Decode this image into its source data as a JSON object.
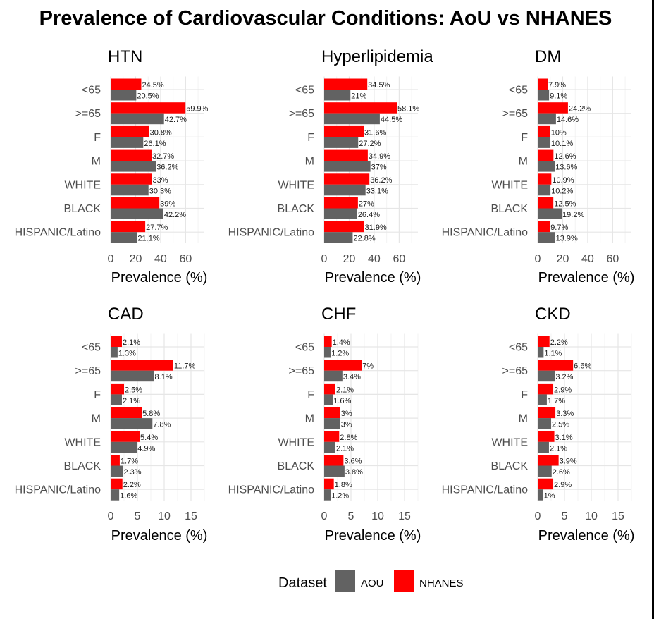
{
  "chart_data": {
    "type": "bar",
    "title": "Prevalence of Cardiovascular Conditions: AoU vs NHANES",
    "categories": [
      "<65",
      ">=65",
      "F",
      "M",
      "WHITE",
      "BLACK",
      "HISPANIC/Latino"
    ],
    "xlabel": "Prevalence (%)",
    "grid": true,
    "legend": {
      "title": "Dataset",
      "position": "bottom",
      "entries": [
        {
          "name": "AOU",
          "color": "#626262"
        },
        {
          "name": "NHANES",
          "color": "#ff0000"
        }
      ]
    },
    "panels": [
      {
        "name": "HTN",
        "xlim": [
          0,
          75
        ],
        "ticks": [
          0,
          20,
          40,
          60
        ],
        "series": [
          {
            "name": "NHANES",
            "values": [
              24.5,
              59.9,
              30.8,
              32.7,
              33,
              39,
              27.7
            ],
            "labels": [
              "24.5%",
              "59.9%",
              "30.8%",
              "32.7%",
              "33%",
              "39%",
              "27.7%"
            ]
          },
          {
            "name": "AOU",
            "values": [
              20.5,
              42.7,
              26.1,
              36.2,
              30.3,
              42.2,
              21.1
            ],
            "labels": [
              "20.5%",
              "42.7%",
              "26.1%",
              "36.2%",
              "30.3%",
              "42.2%",
              "21.1%"
            ]
          }
        ]
      },
      {
        "name": "Hyperlipidemia",
        "xlim": [
          0,
          75
        ],
        "ticks": [
          0,
          20,
          40,
          60
        ],
        "series": [
          {
            "name": "NHANES",
            "values": [
              34.5,
              58.1,
              31.6,
              34.9,
              36.2,
              27,
              31.9
            ],
            "labels": [
              "34.5%",
              "58.1%",
              "31.6%",
              "34.9%",
              "36.2%",
              "27%",
              "31.9%"
            ]
          },
          {
            "name": "AOU",
            "values": [
              21,
              44.5,
              27.2,
              37,
              33.1,
              26.4,
              22.8
            ],
            "labels": [
              "21%",
              "44.5%",
              "27.2%",
              "37%",
              "33.1%",
              "26.4%",
              "22.8%"
            ]
          }
        ]
      },
      {
        "name": "DM",
        "xlim": [
          0,
          75
        ],
        "ticks": [
          0,
          20,
          40,
          60
        ],
        "series": [
          {
            "name": "NHANES",
            "values": [
              7.9,
              24.2,
              10,
              12.6,
              10.9,
              12.5,
              9.7
            ],
            "labels": [
              "7.9%",
              "24.2%",
              "10%",
              "12.6%",
              "10.9%",
              "12.5%",
              "9.7%"
            ]
          },
          {
            "name": "AOU",
            "values": [
              9.1,
              14.6,
              10.1,
              13.6,
              10.2,
              19.2,
              13.9
            ],
            "labels": [
              "9.1%",
              "14.6%",
              "10.1%",
              "13.6%",
              "10.2%",
              "19.2%",
              "13.9%"
            ]
          }
        ]
      },
      {
        "name": "CAD",
        "xlim": [
          0,
          17.5
        ],
        "ticks": [
          0,
          5,
          10,
          15
        ],
        "series": [
          {
            "name": "NHANES",
            "values": [
              2.1,
              11.7,
              2.5,
              5.8,
              5.4,
              1.7,
              2.2
            ],
            "labels": [
              "2.1%",
              "11.7%",
              "2.5%",
              "5.8%",
              "5.4%",
              "1.7%",
              "2.2%"
            ]
          },
          {
            "name": "AOU",
            "values": [
              1.3,
              8.1,
              2.1,
              7.8,
              4.9,
              2.3,
              1.6
            ],
            "labels": [
              "1.3%",
              "8.1%",
              "2.1%",
              "7.8%",
              "4.9%",
              "2.3%",
              "1.6%"
            ]
          }
        ]
      },
      {
        "name": "CHF",
        "xlim": [
          0,
          17.5
        ],
        "ticks": [
          0,
          5,
          10,
          15
        ],
        "series": [
          {
            "name": "NHANES",
            "values": [
              1.4,
              7,
              2.1,
              3,
              2.8,
              3.6,
              1.8
            ],
            "labels": [
              "1.4%",
              "7%",
              "2.1%",
              "3%",
              "2.8%",
              "3.6%",
              "1.8%"
            ]
          },
          {
            "name": "AOU",
            "values": [
              1.2,
              3.4,
              1.6,
              3,
              2.1,
              3.8,
              1.2
            ],
            "labels": [
              "1.2%",
              "3.4%",
              "1.6%",
              "3%",
              "2.1%",
              "3.8%",
              "1.2%"
            ]
          }
        ]
      },
      {
        "name": "CKD",
        "xlim": [
          0,
          17.5
        ],
        "ticks": [
          0,
          5,
          10,
          15
        ],
        "series": [
          {
            "name": "NHANES",
            "values": [
              2.2,
              6.6,
              2.9,
              3.3,
              3.1,
              3.9,
              2.9
            ],
            "labels": [
              "2.2%",
              "6.6%",
              "2.9%",
              "3.3%",
              "3.1%",
              "3.9%",
              "2.9%"
            ]
          },
          {
            "name": "AOU",
            "values": [
              1.1,
              3.2,
              1.7,
              2.5,
              2.1,
              2.6,
              1
            ],
            "labels": [
              "1.1%",
              "3.2%",
              "1.7%",
              "2.5%",
              "2.1%",
              "2.6%",
              "1%"
            ]
          }
        ]
      }
    ]
  }
}
